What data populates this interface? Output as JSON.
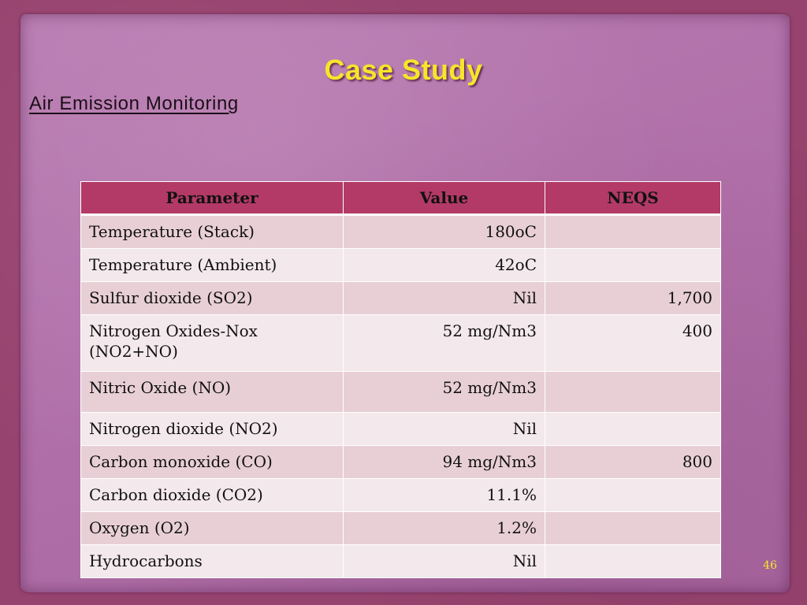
{
  "slide": {
    "title": "Case Study",
    "subtitle": "Air Emission Monitoring",
    "page_number": "46"
  },
  "table": {
    "headers": [
      "Parameter",
      "Value",
      "NEQS"
    ],
    "rows": [
      {
        "parameter": "Temperature (Stack)",
        "value": "180oC",
        "neqs": ""
      },
      {
        "parameter": "Temperature (Ambient)",
        "value": "42oC",
        "neqs": ""
      },
      {
        "parameter": "Sulfur dioxide (SO2)",
        "value": "Nil",
        "neqs": "1,700"
      },
      {
        "parameter": "Nitrogen Oxides-Nox (NO2+NO)",
        "value": "52 mg/Nm3",
        "neqs": "400"
      },
      {
        "parameter": "Nitric Oxide (NO)",
        "value": "52 mg/Nm3",
        "neqs": ""
      },
      {
        "parameter": "Nitrogen dioxide (NO2)",
        "value": "Nil",
        "neqs": ""
      },
      {
        "parameter": "Carbon monoxide (CO)",
        "value": "94 mg/Nm3",
        "neqs": "800"
      },
      {
        "parameter": "Carbon dioxide (CO2)",
        "value": "11.1%",
        "neqs": ""
      },
      {
        "parameter": "Oxygen (O2)",
        "value": "1.2%",
        "neqs": ""
      },
      {
        "parameter": "Hydrocarbons",
        "value": "Nil",
        "neqs": ""
      }
    ]
  },
  "colors": {
    "background": "#97436f",
    "paper": "#b06fa8",
    "title": "#f5e62a",
    "header_row": "#b33a66",
    "row_odd": "#e8cfd6",
    "row_even": "#f3e8eb"
  }
}
